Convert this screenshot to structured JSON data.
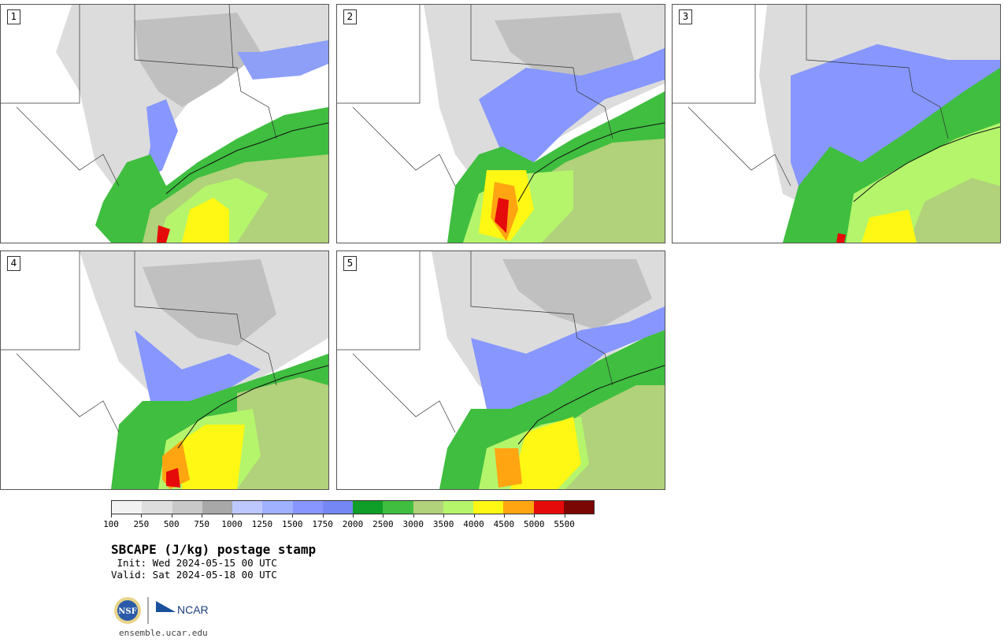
{
  "panels": [
    {
      "label": "1"
    },
    {
      "label": "2"
    },
    {
      "label": "3"
    },
    {
      "label": "4"
    },
    {
      "label": "5"
    }
  ],
  "colorbar": {
    "colors": [
      "#f2f2f2",
      "#dedede",
      "#c8c8c8",
      "#a8a8a8",
      "#bcc8ff",
      "#9fb1ff",
      "#8797ff",
      "#7587f5",
      "#0f9e27",
      "#3fbe3f",
      "#b1d17a",
      "#b4f56c",
      "#fff714",
      "#ffa512",
      "#e60b0b",
      "#7a0704"
    ],
    "tick_labels": [
      "100",
      "250",
      "500",
      "750",
      "1000",
      "1250",
      "1500",
      "1750",
      "2000",
      "2500",
      "3000",
      "3500",
      "4000",
      "4500",
      "5000",
      "5500"
    ]
  },
  "title": "SBCAPE (J/kg) postage stamp",
  "init": " Init: Wed 2024-05-15 00 UTC",
  "valid": "Valid: Sat 2024-05-18 00 UTC",
  "logos": {
    "nsf": "NSF",
    "ncar": "NCAR"
  },
  "site": "ensemble.ucar.edu"
}
